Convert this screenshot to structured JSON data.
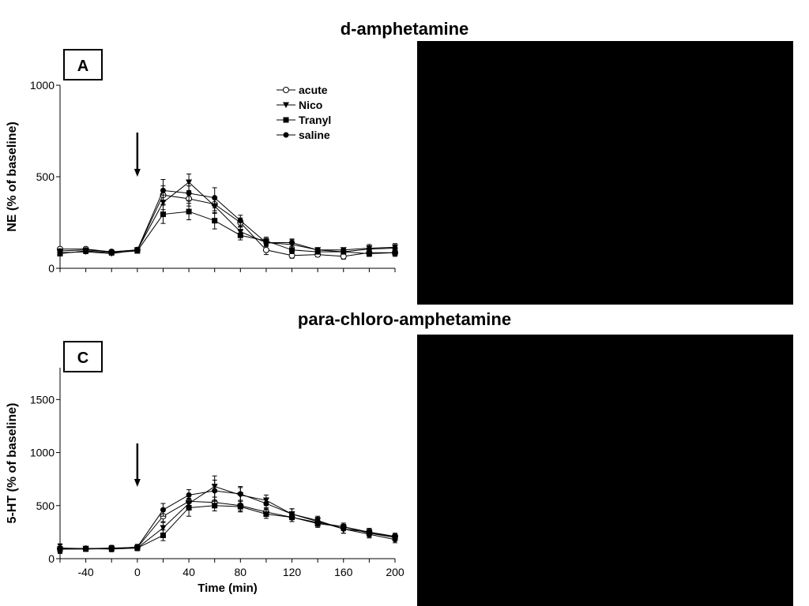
{
  "chart_data": [
    {
      "panel_label": "A",
      "title": "d-amphetamine",
      "type": "line",
      "ylabel": "NE (% of baseline)",
      "xlabel": "",
      "xlim": [
        -60,
        200
      ],
      "ylim": [
        0,
        1000
      ],
      "yticks": [
        0,
        500,
        1000
      ],
      "xticks": [
        -40,
        0,
        40,
        80,
        120,
        160,
        200
      ],
      "x_ticklabels_shown": false,
      "injection_arrow_x": 0,
      "grid": false,
      "legend": "top-center",
      "x": [
        -60,
        -40,
        -20,
        0,
        20,
        40,
        60,
        80,
        100,
        120,
        140,
        160,
        180,
        200
      ],
      "series": [
        {
          "name": "acute",
          "marker": "open-circle",
          "values": [
            105,
            105,
            90,
            100,
            400,
            380,
            350,
            250,
            100,
            70,
            75,
            65,
            85,
            85
          ],
          "errors": [
            10,
            10,
            8,
            10,
            50,
            40,
            35,
            25,
            25,
            15,
            12,
            15,
            20,
            20
          ]
        },
        {
          "name": "Nico",
          "marker": "filled-triangle-down",
          "values": [
            85,
            90,
            80,
            100,
            360,
            470,
            340,
            200,
            140,
            130,
            100,
            100,
            110,
            115
          ],
          "errors": [
            10,
            10,
            8,
            10,
            40,
            45,
            40,
            25,
            20,
            25,
            12,
            12,
            20,
            20
          ]
        },
        {
          "name": "Tranyl",
          "marker": "filled-square",
          "values": [
            80,
            95,
            85,
            95,
            295,
            310,
            260,
            180,
            150,
            100,
            90,
            90,
            80,
            85
          ],
          "errors": [
            10,
            10,
            8,
            10,
            50,
            45,
            45,
            25,
            20,
            20,
            12,
            12,
            15,
            15
          ]
        },
        {
          "name": "saline",
          "marker": "filled-circle",
          "values": [
            95,
            100,
            90,
            100,
            425,
            410,
            385,
            260,
            140,
            140,
            100,
            90,
            105,
            110
          ],
          "errors": [
            10,
            10,
            8,
            10,
            60,
            40,
            55,
            30,
            20,
            20,
            12,
            12,
            18,
            18
          ]
        }
      ]
    },
    {
      "panel_label": "C",
      "title": "para-chloro-amphetamine",
      "type": "line",
      "ylabel": "5-HT (% of baseline)",
      "xlabel": "Time (min)",
      "xlim": [
        -60,
        200
      ],
      "ylim": [
        0,
        1800
      ],
      "yticks": [
        0,
        500,
        1000,
        1500
      ],
      "xticks": [
        -40,
        0,
        40,
        80,
        120,
        160,
        200
      ],
      "x_ticklabels_shown": true,
      "injection_arrow_x": 0,
      "grid": false,
      "legend": "none",
      "x": [
        -60,
        -40,
        -20,
        0,
        20,
        40,
        60,
        80,
        100,
        120,
        140,
        160,
        180,
        200
      ],
      "series": [
        {
          "name": "acute",
          "marker": "open-circle",
          "values": [
            95,
            95,
            100,
            105,
            400,
            540,
            530,
            500,
            440,
            390,
            340,
            300,
            250,
            210
          ],
          "errors": [
            40,
            15,
            25,
            25,
            60,
            50,
            50,
            50,
            40,
            40,
            35,
            35,
            35,
            30
          ]
        },
        {
          "name": "Nico",
          "marker": "filled-triangle-down",
          "values": [
            90,
            95,
            90,
            100,
            290,
            520,
            680,
            600,
            550,
            420,
            360,
            280,
            250,
            200
          ],
          "errors": [
            40,
            15,
            25,
            25,
            60,
            50,
            100,
            80,
            50,
            50,
            40,
            40,
            35,
            30
          ]
        },
        {
          "name": "Tranyl",
          "marker": "filled-square",
          "values": [
            90,
            90,
            95,
            100,
            220,
            480,
            500,
            490,
            420,
            390,
            330,
            300,
            240,
            200
          ],
          "errors": [
            40,
            15,
            25,
            25,
            50,
            80,
            50,
            50,
            40,
            40,
            35,
            35,
            35,
            30
          ]
        },
        {
          "name": "saline",
          "marker": "filled-circle",
          "values": [
            100,
            95,
            95,
            110,
            460,
            600,
            640,
            610,
            520,
            420,
            350,
            280,
            230,
            180
          ],
          "errors": [
            40,
            15,
            25,
            25,
            60,
            50,
            100,
            60,
            50,
            50,
            40,
            40,
            35,
            30
          ]
        }
      ]
    }
  ]
}
